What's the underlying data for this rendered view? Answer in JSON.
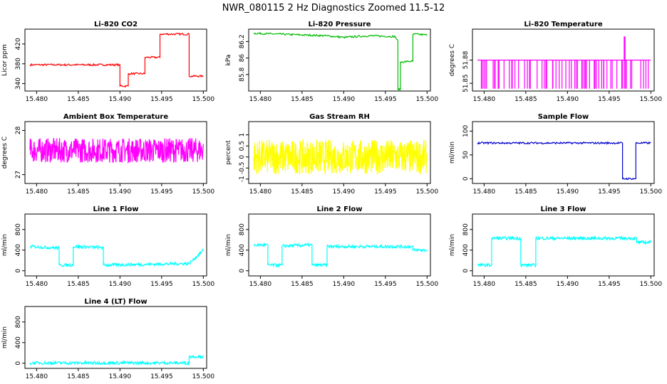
{
  "suptitle": "NWR_080115  2 Hz Diagnostics Zoomed 11.5-12",
  "x_ticks": [
    "15.480",
    "15.485",
    "15.490",
    "15.495",
    "15.500"
  ],
  "chart_data": [
    {
      "type": "line",
      "title": "Li-820 CO2",
      "ylabel": "Licor ppm",
      "color": "#ff0000",
      "ylim": [
        325,
        450
      ],
      "yticks": [
        340,
        380,
        420
      ],
      "x": [
        15.4792,
        15.49,
        15.49,
        15.491,
        15.491,
        15.4913,
        15.4913,
        15.493,
        15.493,
        15.4948,
        15.4948,
        15.4983,
        15.4983,
        15.5
      ],
      "series": [
        {
          "values": [
            378,
            378,
            335,
            335,
            360,
            360,
            360,
            360,
            393,
            393,
            440,
            440,
            355,
            355
          ]
        }
      ]
    },
    {
      "type": "line",
      "title": "Li-820 Pressure",
      "ylabel": "kPa",
      "color": "#00bb00",
      "ylim": [
        85.6,
        86.35
      ],
      "yticks": [
        85.8,
        86.0,
        86.2
      ],
      "x": [
        15.4792,
        15.485,
        15.488,
        15.49,
        15.493,
        15.4962,
        15.4965,
        15.4965,
        15.4968,
        15.4968,
        15.4978,
        15.4978,
        15.4983,
        15.4983,
        15.5
      ],
      "series": [
        {
          "values": [
            86.3,
            86.28,
            86.27,
            86.25,
            86.27,
            86.26,
            86.2,
            85.62,
            85.62,
            85.95,
            85.96,
            85.96,
            85.96,
            86.29,
            86.28
          ]
        }
      ]
    },
    {
      "type": "line",
      "title": "Li-820 Temperature",
      "ylabel": "degrees C",
      "color": "#ff00ff",
      "ylim": [
        51.84,
        51.92
      ],
      "yticks": [
        51.85,
        51.88
      ],
      "x": [
        15.4792,
        15.4968,
        15.4968,
        15.4969,
        15.4969,
        15.5
      ],
      "series": [
        {
          "values": [
            51.88,
            51.88,
            51.91,
            51.91,
            51.88,
            51.88
          ]
        }
      ]
    },
    {
      "type": "line",
      "title": "Ambient Box Temperature",
      "ylabel": "degrees C",
      "color": "#ff00ff",
      "ylim": [
        26.8,
        28.2
      ],
      "yticks": [
        27.0,
        28.0
      ],
      "x": [
        15.4792,
        15.5
      ],
      "series": [
        {
          "values": [
            27.55,
            27.55
          ]
        }
      ]
    },
    {
      "type": "line",
      "title": "Gas Stream RH",
      "ylabel": "percent",
      "color": "#ffff00",
      "ylim": [
        -1.2,
        1.6
      ],
      "yticks": [
        -1.0,
        -0.5,
        0.0,
        0.5,
        1.0
      ],
      "x": [
        15.4792,
        15.5
      ],
      "series": [
        {
          "values": [
            0.0,
            0.0
          ]
        }
      ]
    },
    {
      "type": "line",
      "title": "Sample Flow",
      "ylabel": "ml/min",
      "color": "#0000cc",
      "ylim": [
        -10,
        120
      ],
      "yticks": [
        0,
        50,
        100
      ],
      "x": [
        15.4792,
        15.4966,
        15.4966,
        15.4982,
        15.4982,
        15.5
      ],
      "series": [
        {
          "values": [
            75,
            75,
            0,
            0,
            75,
            75
          ]
        }
      ]
    },
    {
      "type": "line",
      "title": "Line 1 Flow",
      "ylabel": "ml/min",
      "color": "#00ffff",
      "ylim": [
        -100,
        1100
      ],
      "yticks": [
        0,
        400,
        800
      ],
      "x": [
        15.4792,
        15.4827,
        15.4827,
        15.4844,
        15.4844,
        15.488,
        15.488,
        15.4983,
        15.4983,
        15.5
      ],
      "series": [
        {
          "values": [
            470,
            440,
            110,
            110,
            470,
            450,
            110,
            140,
            140,
            400
          ]
        }
      ]
    },
    {
      "type": "line",
      "title": "Line 2 Flow",
      "ylabel": "ml/min",
      "color": "#00ffff",
      "ylim": [
        -100,
        1100
      ],
      "yticks": [
        0,
        400,
        800
      ],
      "x": [
        15.4792,
        15.4809,
        15.4809,
        15.4826,
        15.4826,
        15.4862,
        15.4862,
        15.488,
        15.488,
        15.4983,
        15.4983,
        15.5
      ],
      "series": [
        {
          "values": [
            500,
            500,
            110,
            110,
            480,
            500,
            110,
            110,
            470,
            470,
            400,
            400
          ]
        }
      ]
    },
    {
      "type": "line",
      "title": "Line 3 Flow",
      "ylabel": "ml/min",
      "color": "#00ffff",
      "ylim": [
        -100,
        1100
      ],
      "yticks": [
        0,
        400,
        800
      ],
      "x": [
        15.4792,
        15.4809,
        15.4809,
        15.4844,
        15.4844,
        15.4862,
        15.4862,
        15.4983,
        15.4983,
        15.5
      ],
      "series": [
        {
          "values": [
            110,
            110,
            630,
            630,
            110,
            110,
            630,
            630,
            550,
            550
          ]
        }
      ]
    },
    {
      "type": "line",
      "title": "Line 4 (LT) Flow",
      "ylabel": "ml/min",
      "color": "#00ffff",
      "ylim": [
        -100,
        1100
      ],
      "yticks": [
        0,
        400,
        800
      ],
      "x": [
        15.4792,
        15.4983,
        15.4983,
        15.5
      ],
      "series": [
        {
          "values": [
            5,
            5,
            130,
            130
          ]
        }
      ]
    }
  ]
}
